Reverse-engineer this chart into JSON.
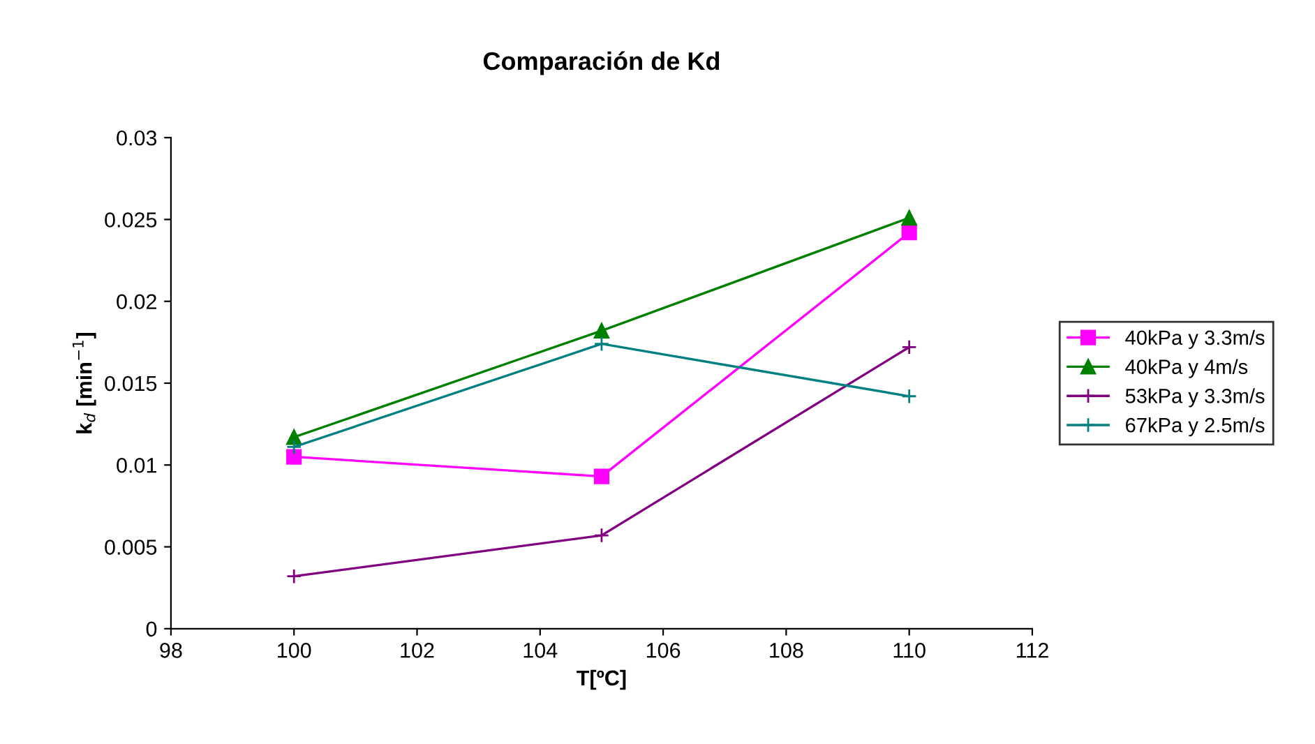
{
  "chart_data": {
    "type": "line",
    "title": "Comparación de Kd",
    "xlabel": "T[ºC]",
    "ylabel": "k$_{d}$ [min$^{−1}$]",
    "x": [
      100,
      105,
      110
    ],
    "series": [
      {
        "name": "40kPa y 3.3m/s",
        "color": "#ff00ff",
        "marker": "square",
        "values": [
          0.0105,
          0.0093,
          0.0242
        ]
      },
      {
        "name": "40kPa y 4m/s",
        "color": "#008000",
        "marker": "triangle",
        "values": [
          0.0117,
          0.0182,
          0.0251
        ]
      },
      {
        "name": "53kPa y 3.3m/s",
        "color": "#800080",
        "marker": "cross",
        "values": [
          0.0032,
          0.0057,
          0.0172
        ]
      },
      {
        "name": "67kPa y 2.5m/s",
        "color": "#008080",
        "marker": "cross",
        "values": [
          0.0111,
          0.0174,
          0.0142
        ]
      }
    ],
    "xlim": [
      98,
      112
    ],
    "xticks": [
      98,
      100,
      102,
      104,
      106,
      108,
      110,
      112
    ],
    "ylim": [
      0,
      0.03
    ],
    "yticks": [
      0,
      0.005,
      0.01,
      0.015,
      0.02,
      0.025,
      0.03
    ],
    "grid": false,
    "legend": "right",
    "line_style": "solid"
  }
}
